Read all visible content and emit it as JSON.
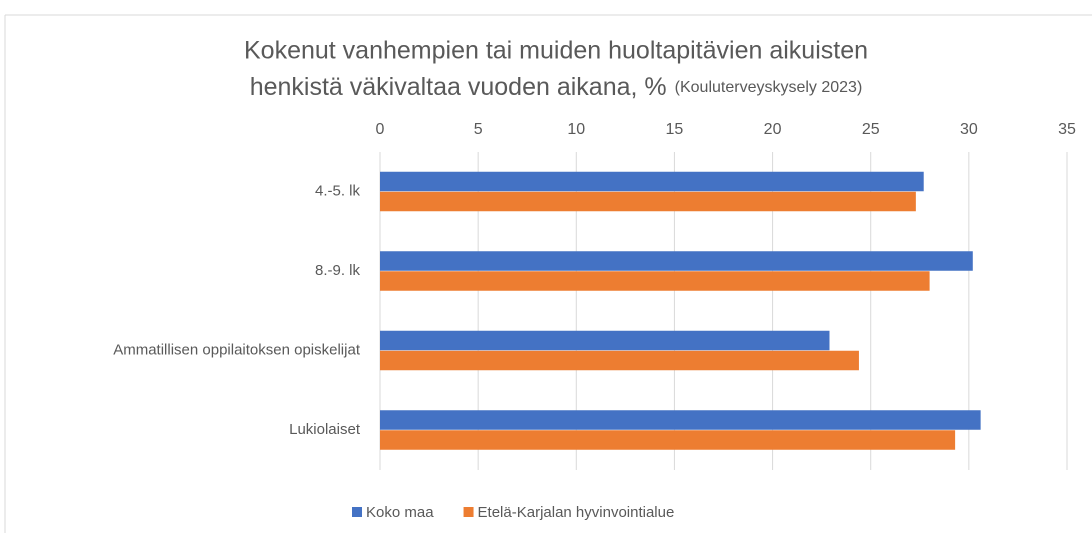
{
  "chart_data": {
    "type": "barh",
    "title": [
      "Kokenut vanhempien tai muiden huoltapitävien aikuisten",
      "henkistä väkivaltaa vuoden aikana, %"
    ],
    "subtitle": "(Kouluterveyskysely 2023)",
    "categories": [
      "4.-5. lk",
      "8.-9. lk",
      "Ammatillisen oppilaitoksen opiskelijat",
      "Lukiolaiset"
    ],
    "series": [
      {
        "name": "Koko maa",
        "color": "#4472c4",
        "values": [
          27.7,
          30.2,
          22.9,
          30.6
        ]
      },
      {
        "name": "Etelä-Karjalan hyvinvointialue",
        "color": "#ed7d31",
        "values": [
          27.3,
          28.0,
          24.4,
          29.3
        ]
      }
    ],
    "xlim": [
      0,
      35
    ],
    "xticks": [
      0,
      5,
      10,
      15,
      20,
      25,
      30,
      35
    ],
    "grid": true,
    "legend": "bottom"
  }
}
